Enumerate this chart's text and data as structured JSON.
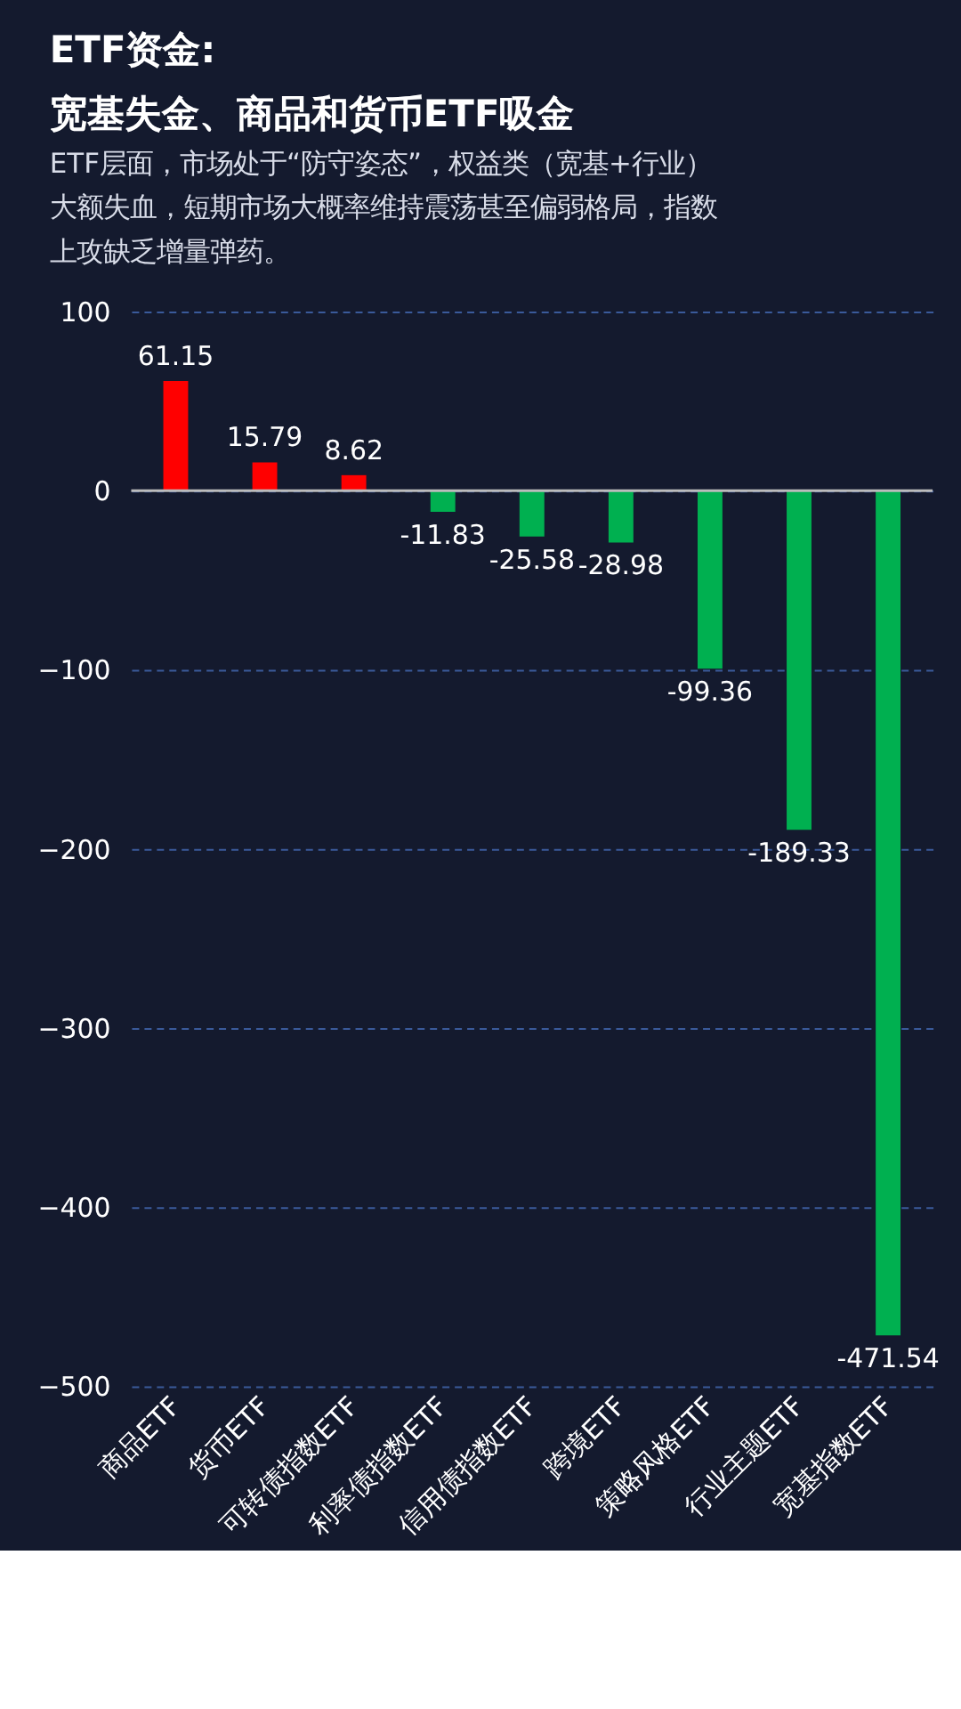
{
  "chart_data": {
    "type": "bar",
    "title": "ETF资金:\n宽基失金、商品和货币ETF吸金",
    "subtitle": "ETF层面，市场处于“防守姿态”，权益类（宽基+行业）大额失血，短期市场大概率维持震荡甚至偏弱格局，指数上攻缺乏增量弹药。",
    "categories": [
      "商品ETF",
      "货币ETF",
      "可转债指数ETF",
      "利率债指数ETF",
      "信用债指数ETF",
      "跨境ETF",
      "策略风格ETF",
      "行业主题ETF",
      "宽基指数ETF"
    ],
    "values": [
      61.15,
      15.79,
      8.62,
      -11.83,
      -25.58,
      -28.98,
      -99.36,
      -189.33,
      -471.54
    ],
    "colors": [
      "#ff0000",
      "#ff0000",
      "#ff0000",
      "#00b050",
      "#00b050",
      "#00b050",
      "#00b050",
      "#00b050",
      "#00b050"
    ],
    "ylim": [
      -500,
      100
    ],
    "yticks": [
      100,
      0,
      -100,
      -200,
      -300,
      -400,
      -500
    ],
    "grid": "y",
    "data_labels": true
  }
}
